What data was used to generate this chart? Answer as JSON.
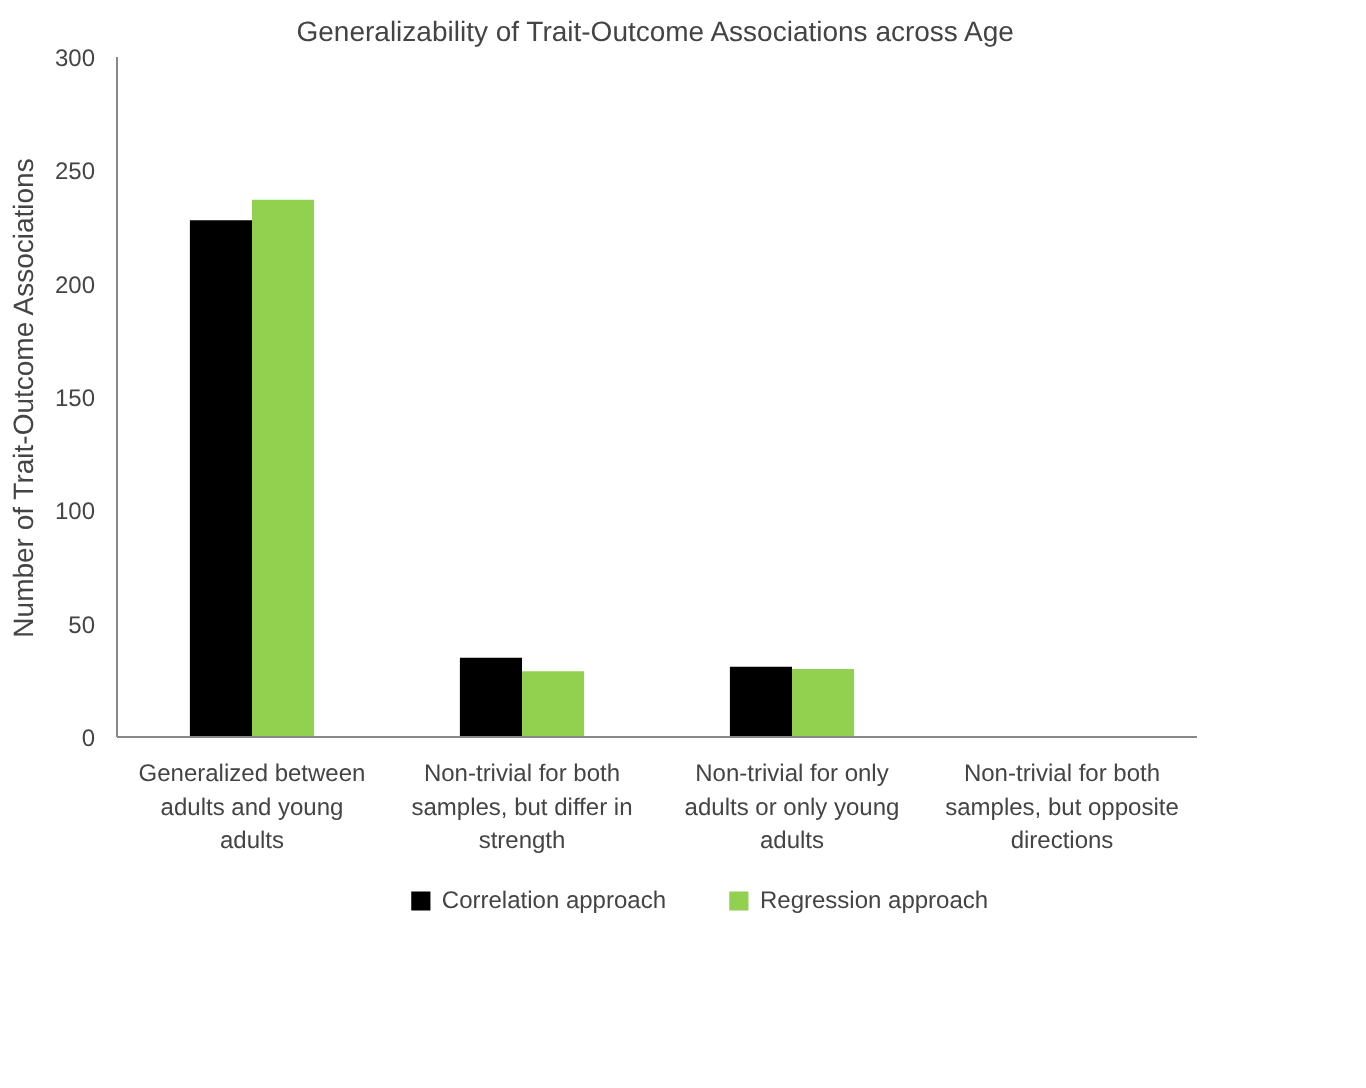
{
  "chart_data": {
    "type": "bar",
    "title": "Generalizability of Trait-Outcome Associations across Age",
    "ylabel": "Number of Trait-Outcome Associations",
    "categories": [
      "Generalized between adults and young adults",
      "Non-trivial for both samples, but differ in strength",
      "Non-trivial for only adults or only young adults",
      "Non-trivial for both samples, but opposite directions"
    ],
    "series": [
      {
        "name": "Correlation approach",
        "color": "#000000",
        "values": [
          228,
          35,
          31,
          0
        ]
      },
      {
        "name": "Regression approach",
        "color": "#92d050",
        "values": [
          237,
          29,
          30,
          0
        ]
      }
    ],
    "ylim": [
      0,
      300
    ],
    "yticks": [
      0,
      50,
      100,
      150,
      200,
      250,
      300
    ],
    "grid": false,
    "legend": "bottom"
  }
}
